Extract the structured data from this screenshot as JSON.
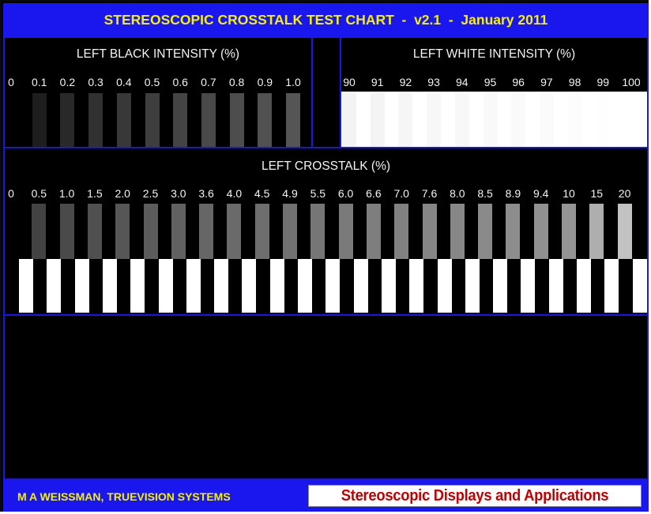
{
  "header": {
    "title": "STEREOSCOPIC CROSSTALK TEST CHART  -  v2.1  -  January 2011"
  },
  "black_panel": {
    "title": "LEFT BLACK INTENSITY (%)",
    "labels": [
      "0",
      "0.1",
      "0.2",
      "0.3",
      "0.4",
      "0.5",
      "0.6",
      "0.7",
      "0.8",
      "0.9",
      "1.0"
    ],
    "levels": [
      0,
      0.1,
      0.2,
      0.3,
      0.4,
      0.5,
      0.6,
      0.7,
      0.8,
      0.9,
      1.0
    ]
  },
  "white_panel": {
    "title": "LEFT WHITE INTENSITY (%)",
    "labels": [
      "90",
      "91",
      "92",
      "93",
      "94",
      "95",
      "96",
      "97",
      "98",
      "99",
      "100"
    ],
    "levels": [
      90,
      91,
      92,
      93,
      94,
      95,
      96,
      97,
      98,
      99,
      100
    ]
  },
  "crosstalk_panel": {
    "title": "LEFT CROSSTALK (%)",
    "labels": [
      "0",
      "0.5",
      "1.0",
      "1.5",
      "2.0",
      "2.5",
      "3.0",
      "3.6",
      "4.0",
      "4.5",
      "4.9",
      "5.5",
      "6.0",
      "6.6",
      "7.0",
      "7.6",
      "8.0",
      "8.5",
      "8.9",
      "9.4",
      "10",
      "15",
      "20"
    ],
    "levels": [
      0,
      0.5,
      1.0,
      1.5,
      2.0,
      2.5,
      3.0,
      3.6,
      4.0,
      4.5,
      4.9,
      5.5,
      6.0,
      6.6,
      7.0,
      7.6,
      8.0,
      8.5,
      8.9,
      9.4,
      10,
      15,
      20
    ]
  },
  "footer": {
    "author": "M A WEISSMAN, TRUEVISION SYSTEMS",
    "brand": "Stereoscopic Displays and Applications"
  },
  "colors": {
    "frame_blue": "#1a16ee",
    "title_yellow": "#f5f100",
    "brand_red": "#c00000",
    "background": "#000000"
  }
}
